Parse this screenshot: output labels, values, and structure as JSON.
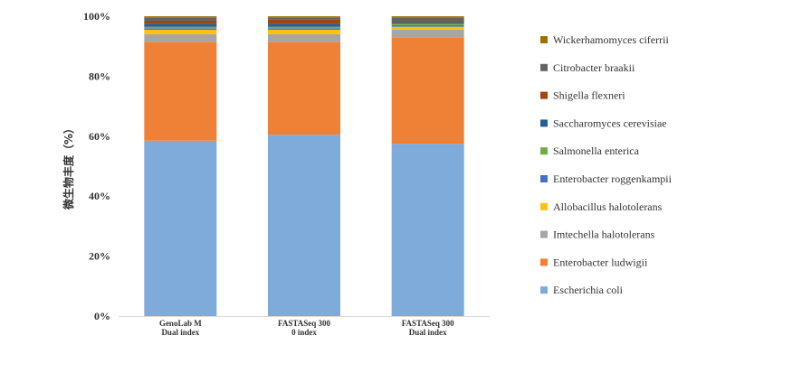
{
  "chart_data": {
    "type": "bar",
    "stacked": true,
    "ylabel": "微生物丰度（%）",
    "ylim": [
      0,
      100
    ],
    "yticks": [
      0,
      20,
      40,
      60,
      80,
      100
    ],
    "ytick_suffix": "%",
    "grid": false,
    "legend_position": "right",
    "categories": [
      [
        "GenoLab M",
        "Dual index"
      ],
      [
        "FASTASeq 300",
        "0 index"
      ],
      [
        "FASTASeq 300",
        "Dual index"
      ]
    ],
    "series": [
      {
        "name": "Escherichia coli",
        "color": "#7fabdb",
        "values": [
          58.5,
          60.5,
          57.5
        ]
      },
      {
        "name": "Enterobacter ludwigii",
        "color": "#ef8137",
        "values": [
          33.0,
          31.0,
          35.5
        ]
      },
      {
        "name": "Imtechella halotolerans",
        "color": "#a6a6a6",
        "values": [
          2.5,
          2.5,
          2.5
        ]
      },
      {
        "name": "Allobacillus halotolerans",
        "color": "#fdc20b",
        "values": [
          1.5,
          1.5,
          1.0
        ]
      },
      {
        "name": "Enterobacter roggenkampii",
        "color": "#4472c4",
        "values": [
          0.5,
          0.5,
          0.5
        ]
      },
      {
        "name": "Salmonella enterica",
        "color": "#70ad47",
        "values": [
          0.5,
          0.5,
          0.5
        ]
      },
      {
        "name": "Saccharomyces cerevisiae",
        "color": "#255e91",
        "values": [
          1.0,
          1.0,
          0.5
        ]
      },
      {
        "name": "Shigella flexneri",
        "color": "#9e480e",
        "values": [
          1.0,
          1.5,
          0.5
        ]
      },
      {
        "name": "Citrobacter braakii",
        "color": "#636363",
        "values": [
          1.0,
          0.5,
          1.0
        ]
      },
      {
        "name": "Wickerhamomyces ciferrii",
        "color": "#997300",
        "values": [
          0.5,
          0.5,
          0.5
        ]
      }
    ]
  }
}
